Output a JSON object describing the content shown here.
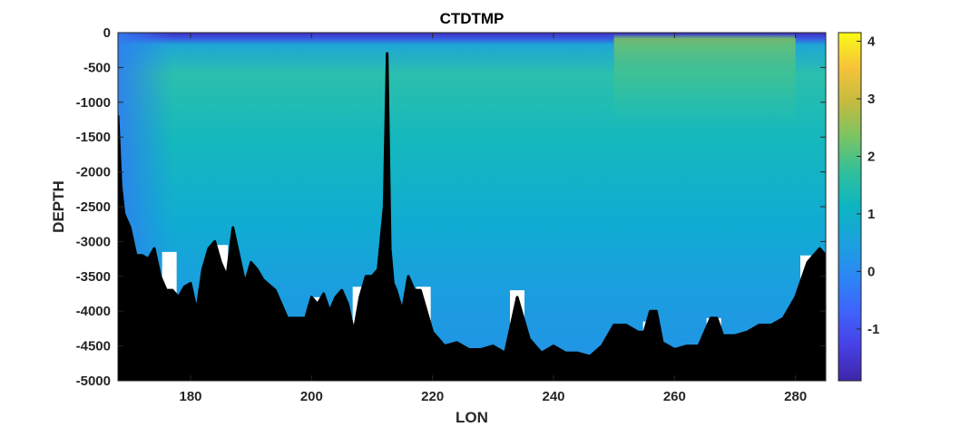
{
  "chart_data": {
    "type": "heatmap",
    "title": "CTDTMP",
    "xlabel": "LON",
    "ylabel": "DEPTH",
    "xlim": [
      168,
      285
    ],
    "ylim": [
      -5000,
      0
    ],
    "x_ticks": [
      180,
      200,
      220,
      240,
      260,
      280
    ],
    "y_ticks": [
      0,
      -500,
      -1000,
      -1500,
      -2000,
      -2500,
      -3000,
      -3500,
      -4000,
      -4500,
      -5000
    ],
    "colorbar": {
      "colormap": "parula",
      "range": [
        -1.9,
        4.15
      ],
      "ticks": [
        -1,
        0,
        1,
        2,
        3,
        4
      ]
    },
    "temperature_profile": {
      "depth": [
        0,
        -60,
        -150,
        -500,
        -1000,
        -2000,
        -3000,
        -4000,
        -5000
      ],
      "temp": [
        -1.3,
        -0.4,
        1.3,
        1.6,
        1.25,
        0.95,
        0.6,
        0.4,
        0.3
      ],
      "surface_warm_zone": {
        "lon_range": [
          250,
          280
        ],
        "peak_temp": 2.3,
        "depth_range": [
          -150,
          -1500
        ]
      }
    },
    "seafloor": {
      "lon": [
        168,
        168.5,
        169,
        170,
        171,
        172,
        173,
        174,
        175,
        176,
        177,
        178,
        179,
        180,
        181,
        182,
        183,
        184,
        185,
        186,
        187,
        188,
        189,
        190,
        191,
        192,
        194,
        196,
        198,
        199,
        200,
        201,
        202,
        203,
        204,
        205,
        206,
        207,
        208,
        209,
        210,
        211,
        212,
        212.5,
        213,
        213.5,
        214,
        215,
        216,
        217,
        218,
        219,
        220,
        222,
        224,
        226,
        228,
        230,
        232,
        234,
        236,
        238,
        240,
        242,
        244,
        246,
        248,
        250,
        252,
        254,
        255,
        256,
        257,
        258,
        260,
        262,
        264,
        266,
        267,
        268,
        270,
        272,
        274,
        276,
        278,
        280,
        282,
        284,
        285
      ],
      "depth": [
        -1200,
        -2200,
        -2600,
        -2800,
        -3200,
        -3200,
        -3250,
        -3100,
        -3500,
        -3700,
        -3700,
        -3800,
        -3650,
        -3600,
        -4000,
        -3400,
        -3100,
        -3000,
        -3300,
        -3500,
        -2800,
        -3200,
        -3600,
        -3300,
        -3400,
        -3550,
        -3700,
        -4100,
        -4100,
        -4100,
        -3800,
        -3900,
        -3750,
        -4000,
        -3800,
        -3700,
        -3900,
        -4300,
        -3800,
        -3500,
        -3500,
        -3400,
        -2500,
        -300,
        -3100,
        -3600,
        -3700,
        -4000,
        -3500,
        -3700,
        -3700,
        -4000,
        -4300,
        -4500,
        -4450,
        -4550,
        -4550,
        -4500,
        -4600,
        -3800,
        -4400,
        -4600,
        -4500,
        -4600,
        -4600,
        -4650,
        -4500,
        -4200,
        -4200,
        -4300,
        -4300,
        -4000,
        -4000,
        -4450,
        -4550,
        -4500,
        -4500,
        -4100,
        -4100,
        -4350,
        -4350,
        -4300,
        -4200,
        -4200,
        -4100,
        -3800,
        -3300,
        -3100,
        -3200
      ],
      "color": "#000000"
    },
    "unsampled_columns": [
      {
        "lon": 176.5,
        "top": -3150
      },
      {
        "lon": 185,
        "top": -3050
      },
      {
        "lon": 201,
        "top": -3800
      },
      {
        "lon": 208,
        "top": -3650
      },
      {
        "lon": 218.5,
        "top": -3650
      },
      {
        "lon": 234,
        "top": -3700
      },
      {
        "lon": 256,
        "top": -4150
      },
      {
        "lon": 266.5,
        "top": -4100
      },
      {
        "lon": 282,
        "top": -3200
      }
    ]
  }
}
